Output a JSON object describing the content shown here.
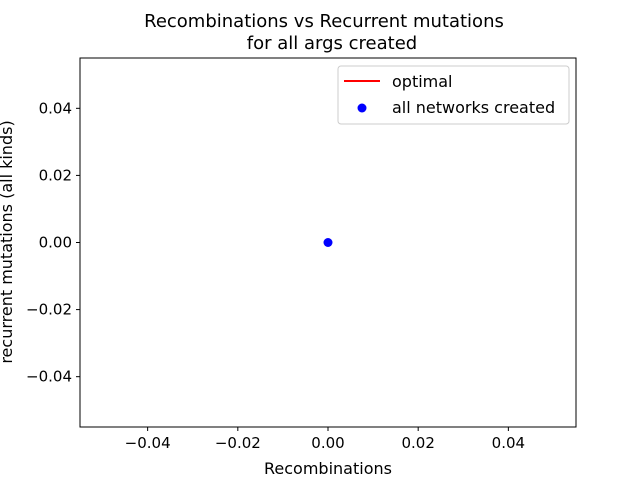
{
  "chart_data": {
    "type": "scatter",
    "title_lines": [
      "Recombinations vs Recurrent mutations",
      "for all args created"
    ],
    "xlabel": "Recombinations",
    "ylabel": "recurrent mutations (all kinds)",
    "xlim": [
      -0.055,
      0.055
    ],
    "ylim": [
      -0.055,
      0.055
    ],
    "x_ticks": [
      -0.04,
      -0.02,
      0.0,
      0.02,
      0.04
    ],
    "y_ticks": [
      -0.04,
      -0.02,
      0.0,
      0.02,
      0.04
    ],
    "x_tick_labels": [
      "−0.04",
      "−0.02",
      "0.00",
      "0.02",
      "0.04"
    ],
    "y_tick_labels": [
      "−0.04",
      "−0.02",
      "0.00",
      "0.02",
      "0.04"
    ],
    "grid": false,
    "legend_position": "top-right",
    "series": [
      {
        "name": "optimal",
        "kind": "line",
        "color": "#ff0000",
        "x": [
          0
        ],
        "y": [
          0
        ]
      },
      {
        "name": "all networks created",
        "kind": "scatter",
        "color": "#0000ff",
        "x": [
          0
        ],
        "y": [
          0
        ]
      }
    ]
  }
}
